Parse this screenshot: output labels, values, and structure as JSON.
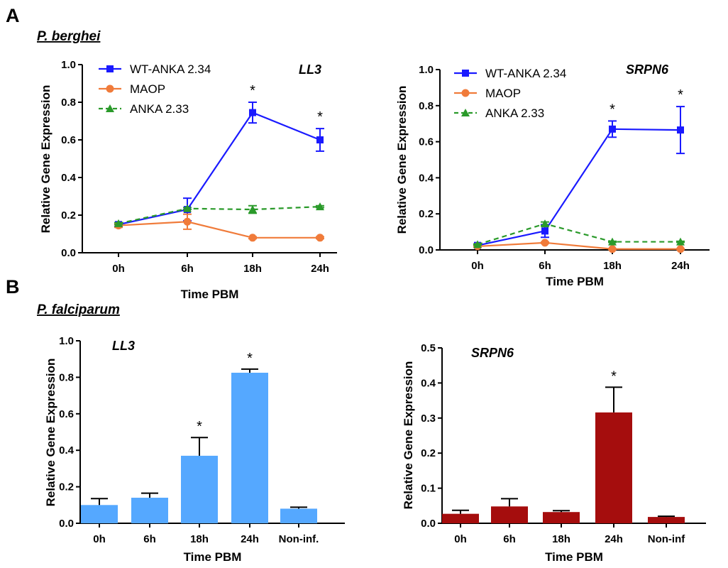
{
  "figure": {
    "panel_a_label": "A",
    "panel_b_label": "B",
    "species_a": "P. berghei",
    "species_b": "P. falciparum"
  },
  "colors": {
    "wt": "#1a1aff",
    "maop": "#f07b3a",
    "anka233": "#2a9a2a",
    "bar_ll3": "#55a8ff",
    "bar_srpn6": "#a50d0d"
  },
  "chart_data": [
    {
      "type": "line",
      "gene_label": "LL3",
      "categories": [
        "0h",
        "6h",
        "18h",
        "24h"
      ],
      "xlabel": "Time PBM",
      "ylabel": "Relative Gene Expression",
      "ylim": [
        0,
        1.0
      ],
      "yticks": [
        "0.0",
        "0.2",
        "0.4",
        "0.6",
        "0.8",
        "1.0"
      ],
      "legend": "top-left",
      "series": [
        {
          "name": "WT-ANKA 2.34",
          "values": [
            0.15,
            0.23,
            0.745,
            0.6
          ],
          "errors": [
            0.01,
            0.06,
            0.055,
            0.06
          ],
          "marker": "square",
          "line": "solid"
        },
        {
          "name": "MAOP",
          "values": [
            0.145,
            0.165,
            0.08,
            0.08
          ],
          "errors": [
            0.01,
            0.04,
            0.005,
            0.005
          ],
          "marker": "circle",
          "line": "solid"
        },
        {
          "name": "ANKA 2.33",
          "values": [
            0.155,
            0.235,
            0.23,
            0.245
          ],
          "errors": [
            0.005,
            0.005,
            0.02,
            0.005
          ],
          "marker": "triangle",
          "line": "dashed"
        }
      ],
      "significance": [
        {
          "x": "18h",
          "label": "*"
        },
        {
          "x": "24h",
          "label": "*"
        }
      ]
    },
    {
      "type": "line",
      "gene_label": "SRPN6",
      "categories": [
        "0h",
        "6h",
        "18h",
        "24h"
      ],
      "xlabel": "Time PBM",
      "ylabel": "Relative Gene Expression",
      "ylim": [
        0,
        1.0
      ],
      "yticks": [
        "0.0",
        "0.2",
        "0.4",
        "0.6",
        "0.8",
        "1.0"
      ],
      "legend": "top-left",
      "series": [
        {
          "name": "WT-ANKA 2.34",
          "values": [
            0.025,
            0.105,
            0.67,
            0.665
          ],
          "errors": [
            0.005,
            0.035,
            0.045,
            0.13
          ],
          "marker": "square",
          "line": "solid"
        },
        {
          "name": "MAOP",
          "values": [
            0.02,
            0.04,
            0.005,
            0.005
          ],
          "errors": [
            0.003,
            0.004,
            0.002,
            0.002
          ],
          "marker": "circle",
          "line": "solid"
        },
        {
          "name": "ANKA 2.33",
          "values": [
            0.03,
            0.145,
            0.045,
            0.045
          ],
          "errors": [
            0.003,
            0.01,
            0.003,
            0.003
          ],
          "marker": "triangle",
          "line": "dashed"
        }
      ],
      "significance": [
        {
          "x": "18h",
          "label": "*"
        },
        {
          "x": "24h",
          "label": "*"
        }
      ]
    },
    {
      "type": "bar",
      "gene_label": "LL3",
      "categories": [
        "0h",
        "6h",
        "18h",
        "24h",
        "Non-inf."
      ],
      "values": [
        0.1,
        0.14,
        0.37,
        0.825,
        0.08
      ],
      "errors": [
        0.035,
        0.025,
        0.1,
        0.02,
        0.008
      ],
      "xlabel": "Time PBM",
      "ylabel": "Relative Gene Expression",
      "ylim": [
        0,
        1.0
      ],
      "yticks": [
        "0.0",
        "0.2",
        "0.4",
        "0.6",
        "0.8",
        "1.0"
      ],
      "significance": [
        {
          "x": "18h",
          "label": "*"
        },
        {
          "x": "24h",
          "label": "*"
        }
      ]
    },
    {
      "type": "bar",
      "gene_label": "SRPN6",
      "categories": [
        "0h",
        "6h",
        "18h",
        "24h",
        "Non-inf"
      ],
      "values": [
        0.027,
        0.048,
        0.032,
        0.316,
        0.018
      ],
      "errors": [
        0.01,
        0.022,
        0.004,
        0.072,
        0.002
      ],
      "xlabel": "Time PBM",
      "ylabel": "Relative Gene Expression",
      "ylim": [
        0,
        0.5
      ],
      "yticks": [
        "0.0",
        "0.1",
        "0.2",
        "0.3",
        "0.4",
        "0.5"
      ],
      "significance": [
        {
          "x": "24h",
          "label": "*"
        }
      ]
    }
  ]
}
